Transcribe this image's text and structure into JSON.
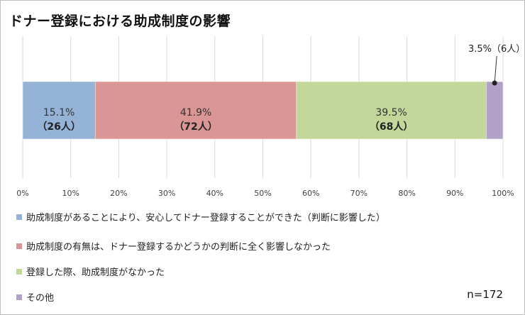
{
  "title": "ドナー登録における助成制度の影響",
  "n_label": "n=172",
  "chart_data": {
    "type": "bar",
    "orientation": "horizontal",
    "stacked": true,
    "xlim": [
      0,
      100
    ],
    "x_ticks": [
      "0%",
      "10%",
      "20%",
      "30%",
      "40%",
      "50%",
      "60%",
      "70%",
      "80%",
      "90%",
      "100%"
    ],
    "grid": true,
    "legend_position": "bottom",
    "series": [
      {
        "name": "助成制度があることにより、安心してドナー登録することができた（判断に影響した）",
        "value": 15.1,
        "pct_label": "15.1%",
        "count_label": "（26人）",
        "color": "#95b3d7"
      },
      {
        "name": "助成制度の有無は、ドナー登録するかどうかの判断に全く影響しなかった",
        "value": 41.9,
        "pct_label": "41.9%",
        "count_label": "（72人）",
        "color": "#da9694"
      },
      {
        "name": "登録した際、助成制度がなかった",
        "value": 39.5,
        "pct_label": "39.5%",
        "count_label": "（68人）",
        "color": "#c4d79b"
      },
      {
        "name": "その他",
        "value": 3.5,
        "pct_label": "3.5%（6人）",
        "color": "#b1a0c7",
        "callout": true
      }
    ]
  }
}
